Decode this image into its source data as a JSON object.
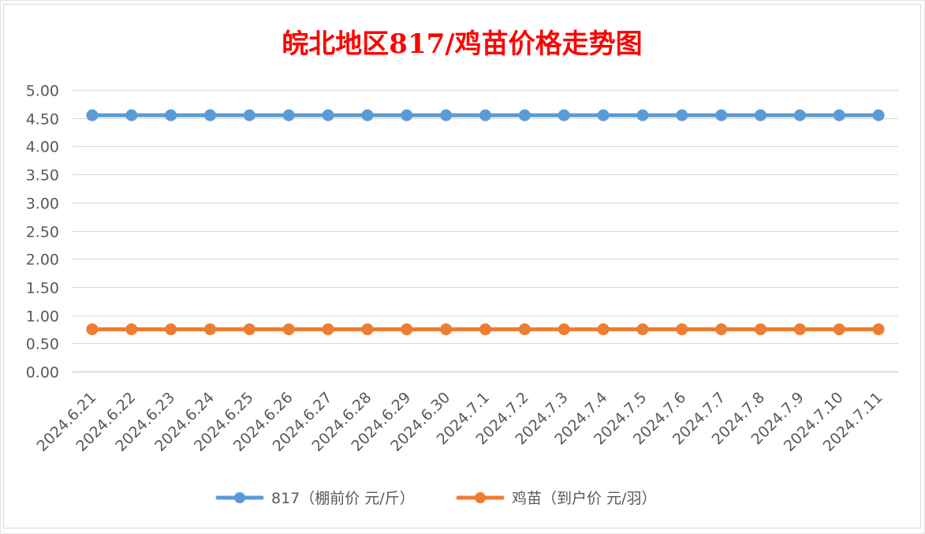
{
  "chart_data": {
    "type": "line",
    "title": "皖北地区817/鸡苗价格走势图",
    "xlabel": "",
    "ylabel": "",
    "categories": [
      "2024.6.21",
      "2024.6.22",
      "2024.6.23",
      "2024.6.24",
      "2024.6.25",
      "2024.6.26",
      "2024.6.27",
      "2024.6.28",
      "2024.6.29",
      "2024.6.30",
      "2024.7.1",
      "2024.7.2",
      "2024.7.3",
      "2024.7.4",
      "2024.7.5",
      "2024.7.6",
      "2024.7.7",
      "2024.7.8",
      "2024.7.9",
      "2024.7.10",
      "2024.7.11"
    ],
    "y_ticks": [
      "0.00",
      "0.50",
      "1.00",
      "1.50",
      "2.00",
      "2.50",
      "3.00",
      "3.50",
      "4.00",
      "4.50",
      "5.00"
    ],
    "ylim": [
      0,
      5
    ],
    "grid": true,
    "legend_position": "bottom",
    "series": [
      {
        "name": "817（棚前价 元/斤）",
        "color": "#5b9bd5",
        "values": [
          4.55,
          4.55,
          4.55,
          4.55,
          4.55,
          4.55,
          4.55,
          4.55,
          4.55,
          4.55,
          4.55,
          4.55,
          4.55,
          4.55,
          4.55,
          4.55,
          4.55,
          4.55,
          4.55,
          4.55,
          4.55
        ]
      },
      {
        "name": "鸡苗（到户价 元/羽）",
        "color": "#ed7d31",
        "values": [
          0.75,
          0.75,
          0.75,
          0.75,
          0.75,
          0.75,
          0.75,
          0.75,
          0.75,
          0.75,
          0.75,
          0.75,
          0.75,
          0.75,
          0.75,
          0.75,
          0.75,
          0.75,
          0.75,
          0.75,
          0.75
        ]
      }
    ]
  }
}
